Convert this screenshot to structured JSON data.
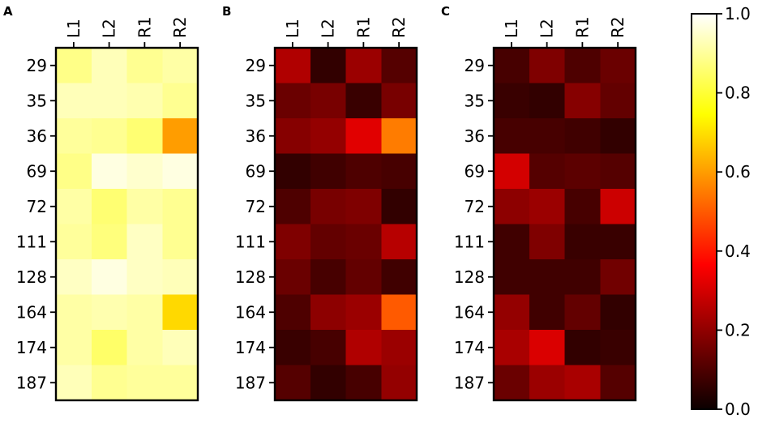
{
  "chart_data": [
    {
      "type": "heatmap",
      "panel": "A",
      "columns": [
        "L1",
        "L2",
        "R1",
        "R2"
      ],
      "rows": [
        "29",
        "35",
        "36",
        "69",
        "72",
        "111",
        "128",
        "164",
        "174",
        "187"
      ],
      "values": [
        [
          0.88,
          0.93,
          0.89,
          0.91
        ],
        [
          0.93,
          0.93,
          0.92,
          0.89
        ],
        [
          0.9,
          0.89,
          0.86,
          0.6
        ],
        [
          0.88,
          0.97,
          0.95,
          0.97
        ],
        [
          0.91,
          0.86,
          0.91,
          0.89
        ],
        [
          0.9,
          0.87,
          0.94,
          0.89
        ],
        [
          0.94,
          0.97,
          0.94,
          0.93
        ],
        [
          0.91,
          0.92,
          0.91,
          0.69
        ],
        [
          0.91,
          0.85,
          0.91,
          0.93
        ],
        [
          0.93,
          0.89,
          0.9,
          0.9
        ]
      ]
    },
    {
      "type": "heatmap",
      "panel": "B",
      "columns": [
        "L1",
        "L2",
        "R1",
        "R2"
      ],
      "rows": [
        "29",
        "35",
        "36",
        "69",
        "72",
        "111",
        "128",
        "164",
        "174",
        "187"
      ],
      "values": [
        [
          0.21,
          0.03,
          0.18,
          0.08
        ],
        [
          0.11,
          0.13,
          0.04,
          0.13
        ],
        [
          0.15,
          0.17,
          0.28,
          0.55
        ],
        [
          0.03,
          0.05,
          0.07,
          0.06
        ],
        [
          0.07,
          0.13,
          0.14,
          0.03
        ],
        [
          0.14,
          0.1,
          0.11,
          0.22
        ],
        [
          0.11,
          0.06,
          0.1,
          0.05
        ],
        [
          0.07,
          0.16,
          0.18,
          0.5
        ],
        [
          0.04,
          0.06,
          0.21,
          0.18
        ],
        [
          0.08,
          0.03,
          0.06,
          0.17
        ]
      ]
    },
    {
      "type": "heatmap",
      "panel": "C",
      "columns": [
        "L1",
        "L2",
        "R1",
        "R2"
      ],
      "rows": [
        "29",
        "35",
        "36",
        "69",
        "72",
        "111",
        "128",
        "164",
        "174",
        "187"
      ],
      "values": [
        [
          0.06,
          0.14,
          0.07,
          0.11
        ],
        [
          0.04,
          0.03,
          0.15,
          0.1
        ],
        [
          0.06,
          0.06,
          0.05,
          0.03
        ],
        [
          0.26,
          0.08,
          0.09,
          0.08
        ],
        [
          0.16,
          0.18,
          0.06,
          0.25
        ],
        [
          0.05,
          0.14,
          0.04,
          0.04
        ],
        [
          0.05,
          0.05,
          0.05,
          0.12
        ],
        [
          0.17,
          0.05,
          0.1,
          0.03
        ],
        [
          0.2,
          0.27,
          0.03,
          0.04
        ],
        [
          0.11,
          0.18,
          0.2,
          0.08
        ]
      ]
    }
  ],
  "colorbar": {
    "colormap": "hot",
    "range": [
      0.0,
      1.0
    ],
    "ticks": [
      "0.0",
      "0.2",
      "0.4",
      "0.6",
      "0.8",
      "1.0"
    ]
  }
}
